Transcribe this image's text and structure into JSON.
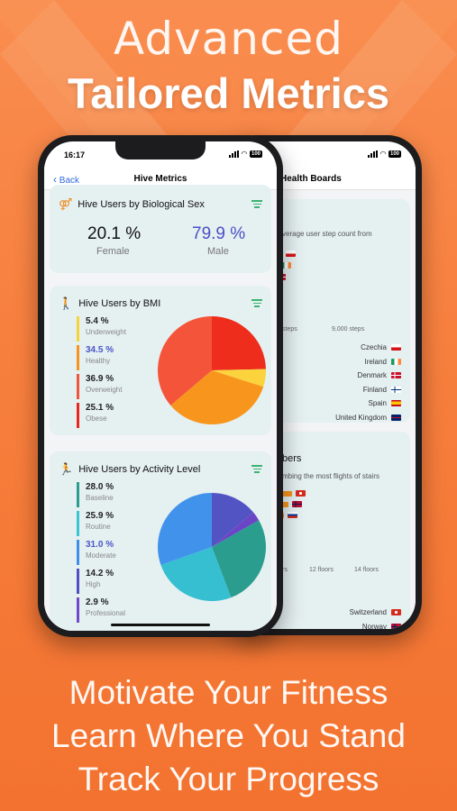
{
  "headline": {
    "line1": "Advanced",
    "line2": "Tailored Metrics"
  },
  "taglines": [
    "Motivate Your Fitness",
    "Learn Where You Stand",
    "Track Your Progress"
  ],
  "front_phone": {
    "status_time": "16:17",
    "battery": "100",
    "nav_back": "Back",
    "nav_title": "Hive Metrics",
    "sex_card": {
      "title": "Hive Users by Biological Sex",
      "female_value": "20.1 %",
      "female_label": "Female",
      "male_value": "79.9 %",
      "male_label": "Male",
      "male_color": "#4a4fc4"
    },
    "bmi_card": {
      "title": "Hive Users by BMI",
      "items": [
        {
          "value": "5.4 %",
          "label": "Underweight",
          "color": "#f5d43a",
          "value_color": "#222"
        },
        {
          "value": "34.5 %",
          "label": "Healthy",
          "color": "#f7941d",
          "value_color": "#4a55c9"
        },
        {
          "value": "36.9 %",
          "label": "Overweight",
          "color": "#f0563a",
          "value_color": "#222"
        },
        {
          "value": "25.1 %",
          "label": "Obese",
          "color": "#e8261b",
          "value_color": "#222"
        }
      ],
      "slices": [
        {
          "pct": 25.1,
          "color": "#ee2d1c"
        },
        {
          "pct": 5.4,
          "color": "#fbd33d"
        },
        {
          "pct": 34.5,
          "color": "#f8951d"
        },
        {
          "pct": 36.9,
          "color": "#f4553a"
        }
      ]
    },
    "activity_card": {
      "title": "Hive Users by Activity Level",
      "items": [
        {
          "value": "28.0 %",
          "label": "Baseline",
          "color": "#2a9d8f",
          "value_color": "#222"
        },
        {
          "value": "25.9 %",
          "label": "Routine",
          "color": "#3bc3d3",
          "value_color": "#222"
        },
        {
          "value": "31.0 %",
          "label": "Moderate",
          "color": "#3f8fe8",
          "value_color": "#4a55c9"
        },
        {
          "value": "14.2 %",
          "label": "High",
          "color": "#5050c0",
          "value_color": "#222"
        },
        {
          "value": "2.9 %",
          "label": "Professional",
          "color": "#7048c8",
          "value_color": "#222"
        }
      ],
      "slices": [
        {
          "pct": 14.2,
          "color": "#5354c4"
        },
        {
          "pct": 2.9,
          "color": "#6c45c6"
        },
        {
          "pct": 28.0,
          "color": "#2a9d8f"
        },
        {
          "pct": 25.9,
          "color": "#36bfd1"
        },
        {
          "pct": 31.0,
          "color": "#4192eb"
        }
      ]
    }
  },
  "back_phone": {
    "battery": "100",
    "nav_title": "Health Boards",
    "steps_card": {
      "subtitle": "verage user step count from",
      "axis_labels": [
        "steps",
        "9,000 steps"
      ],
      "bars": [
        {
          "width": 0.78,
          "flag": "cz"
        },
        {
          "width": 0.72,
          "flag": "ie"
        },
        {
          "width": 0.66,
          "flag": "dk"
        },
        {
          "width": 0.6,
          "flag": "fi"
        },
        {
          "width": 0.55,
          "flag": "es"
        }
      ],
      "countries": [
        {
          "name": "Czechia",
          "flag": "cz"
        },
        {
          "name": "Ireland",
          "flag": "ie"
        },
        {
          "name": "Denmark",
          "flag": "dk"
        },
        {
          "name": "Finland",
          "flag": "fi"
        },
        {
          "name": "Spain",
          "flag": "es"
        },
        {
          "name": "United Kingdom",
          "flag": "gb"
        }
      ]
    },
    "stairs_card": {
      "title": "bers",
      "subtitle": "mbing the most flights of stairs",
      "axis_labels": [
        "rs",
        "12 floors",
        "14 floors"
      ],
      "bars": [
        {
          "width": 0.9,
          "flag": "ch"
        },
        {
          "width": 0.85,
          "flag": "no"
        },
        {
          "width": 0.8,
          "flag": "ru"
        },
        {
          "width": 0.3,
          "flag": "ie"
        },
        {
          "width": 0.35,
          "flag": "fi"
        },
        {
          "width": 0.0,
          "flag": "gb"
        }
      ],
      "countries": [
        {
          "name": "Switzerland",
          "flag": "ch"
        },
        {
          "name": "Norway",
          "flag": "no"
        }
      ]
    }
  }
}
